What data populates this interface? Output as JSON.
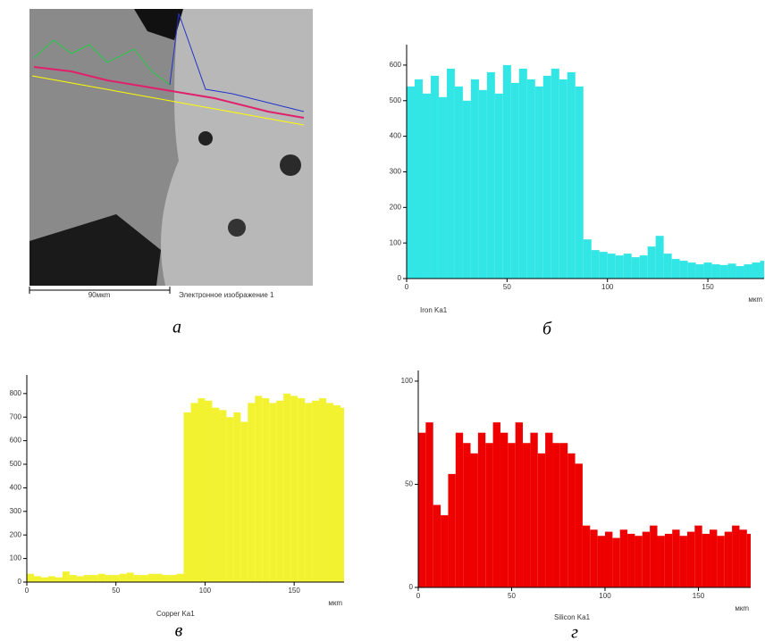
{
  "image_panel": {
    "scale_label": "90мкm",
    "caption": "Электронное изображение 1"
  },
  "panel_labels": [
    "а",
    "б",
    "в",
    "г"
  ],
  "chart_data": [
    {
      "type": "bar",
      "x_label": "мкm",
      "xlim": [
        0,
        178
      ],
      "xticks": [
        0,
        50,
        100,
        150
      ],
      "ylim": [
        0,
        645
      ],
      "yticks": [
        0,
        100,
        200,
        300,
        400,
        500,
        600
      ],
      "x": [
        0,
        4,
        8,
        12,
        16,
        20,
        24,
        28,
        32,
        36,
        40,
        44,
        48,
        52,
        56,
        60,
        64,
        68,
        72,
        76,
        80,
        84,
        88,
        92,
        96,
        100,
        104,
        108,
        112,
        116,
        120,
        124,
        128,
        132,
        136,
        140,
        144,
        148,
        152,
        156,
        160,
        164,
        168,
        172,
        176
      ],
      "series": [
        {
          "name": "Iron Ka1",
          "color": "#33e6e6",
          "values": [
            540,
            560,
            520,
            570,
            510,
            590,
            540,
            500,
            560,
            530,
            580,
            520,
            600,
            550,
            590,
            560,
            540,
            570,
            590,
            560,
            580,
            540,
            110,
            80,
            75,
            70,
            65,
            70,
            60,
            65,
            90,
            120,
            70,
            55,
            50,
            45,
            40,
            45,
            40,
            38,
            42,
            35,
            40,
            45,
            50
          ]
        }
      ]
    },
    {
      "type": "bar",
      "x_label": "мкm",
      "xlim": [
        0,
        178
      ],
      "xticks": [
        0,
        50,
        100,
        150
      ],
      "ylim": [
        0,
        860
      ],
      "yticks": [
        0,
        100,
        200,
        300,
        400,
        500,
        600,
        700,
        800
      ],
      "x": [
        0,
        4,
        8,
        12,
        16,
        20,
        24,
        28,
        32,
        36,
        40,
        44,
        48,
        52,
        56,
        60,
        64,
        68,
        72,
        76,
        80,
        84,
        88,
        92,
        96,
        100,
        104,
        108,
        112,
        116,
        120,
        124,
        128,
        132,
        136,
        140,
        144,
        148,
        152,
        156,
        160,
        164,
        168,
        172,
        176
      ],
      "series": [
        {
          "name": "Copper Ka1",
          "color": "#f2f230",
          "values": [
            35,
            25,
            20,
            25,
            20,
            45,
            30,
            25,
            30,
            30,
            35,
            30,
            30,
            35,
            40,
            30,
            30,
            35,
            35,
            30,
            30,
            35,
            720,
            760,
            780,
            770,
            740,
            730,
            700,
            720,
            680,
            760,
            790,
            780,
            760,
            770,
            800,
            790,
            780,
            760,
            770,
            780,
            760,
            750,
            740
          ]
        }
      ]
    },
    {
      "type": "bar",
      "x_label": "мкm",
      "xlim": [
        0,
        178
      ],
      "xticks": [
        0,
        50,
        100,
        150
      ],
      "ylim": [
        0,
        103
      ],
      "yticks": [
        0,
        50,
        100
      ],
      "x": [
        0,
        4,
        8,
        12,
        16,
        20,
        24,
        28,
        32,
        36,
        40,
        44,
        48,
        52,
        56,
        60,
        64,
        68,
        72,
        76,
        80,
        84,
        88,
        92,
        96,
        100,
        104,
        108,
        112,
        116,
        120,
        124,
        128,
        132,
        136,
        140,
        144,
        148,
        152,
        156,
        160,
        164,
        168,
        172,
        176
      ],
      "series": [
        {
          "name": "Silicon Ka1",
          "color": "#ee0000",
          "values": [
            75,
            80,
            40,
            35,
            55,
            75,
            70,
            65,
            75,
            70,
            80,
            75,
            70,
            80,
            70,
            75,
            65,
            75,
            70,
            70,
            65,
            60,
            30,
            28,
            25,
            27,
            24,
            28,
            26,
            25,
            27,
            30,
            25,
            26,
            28,
            25,
            27,
            30,
            26,
            28,
            25,
            27,
            30,
            28,
            26
          ]
        }
      ]
    }
  ]
}
